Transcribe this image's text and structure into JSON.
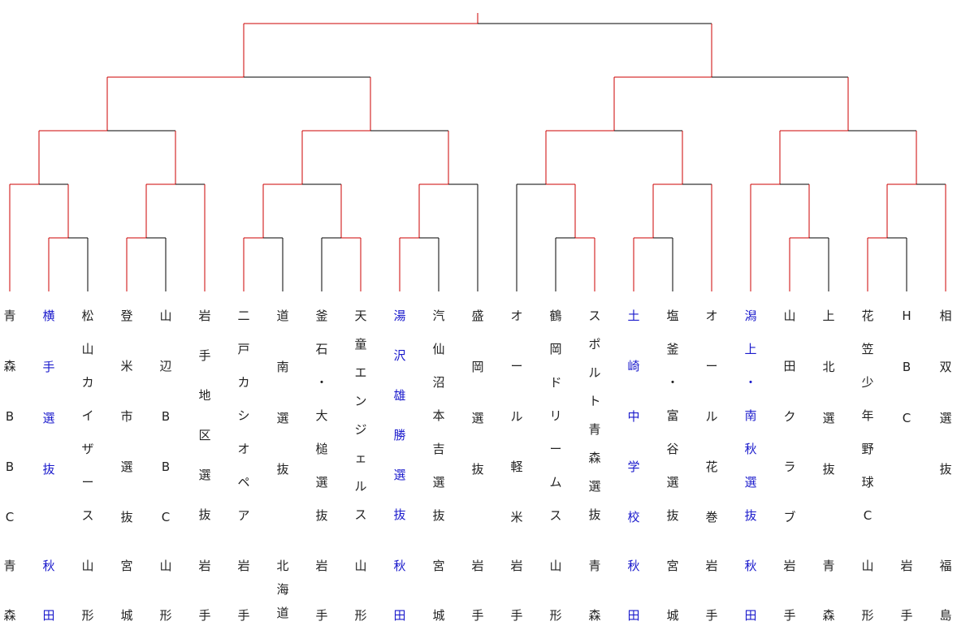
{
  "colors": {
    "winning_path": "#cc0000",
    "normal_line": "#000000",
    "winner_text": "#1a1acc",
    "text": "#222222"
  },
  "teams": [
    {
      "name": "青森BBC",
      "pref": "青森",
      "highlight": false
    },
    {
      "name": "横手選抜",
      "pref": "秋田",
      "highlight": true
    },
    {
      "name": "松山カイザース",
      "pref": "山形",
      "highlight": false
    },
    {
      "name": "登米市選抜",
      "pref": "宮城",
      "highlight": false
    },
    {
      "name": "山辺BBC",
      "pref": "山形",
      "highlight": false
    },
    {
      "name": "岩手地区選抜",
      "pref": "岩手",
      "highlight": false
    },
    {
      "name": "二戸カシオペア",
      "pref": "岩手",
      "highlight": false
    },
    {
      "name": "道南選抜",
      "pref": "北海道",
      "highlight": false
    },
    {
      "name": "釜石・大槌選抜",
      "pref": "岩手",
      "highlight": false
    },
    {
      "name": "天童エンジェルス",
      "pref": "山形",
      "highlight": false
    },
    {
      "name": "湯沢雄勝選抜",
      "pref": "秋田",
      "highlight": true
    },
    {
      "name": "汽仙沼本吉選抜",
      "pref": "宮城",
      "highlight": false
    },
    {
      "name": "盛岡選抜",
      "pref": "岩手",
      "highlight": false
    },
    {
      "name": "オール軽米",
      "pref": "岩手",
      "highlight": false
    },
    {
      "name": "鶴岡ドリームス",
      "pref": "山形",
      "highlight": false
    },
    {
      "name": "スポルト青森選抜",
      "pref": "青森",
      "highlight": false
    },
    {
      "name": "土崎中学校",
      "pref": "秋田",
      "highlight": true
    },
    {
      "name": "塩釜・富谷選抜",
      "pref": "宮城",
      "highlight": false
    },
    {
      "name": "オール花巻",
      "pref": "岩手",
      "highlight": false
    },
    {
      "name": "潟上・南秋選抜",
      "pref": "秋田",
      "highlight": true
    },
    {
      "name": "山田クラブ",
      "pref": "岩手",
      "highlight": false
    },
    {
      "name": "上北選抜",
      "pref": "青森",
      "highlight": false
    },
    {
      "name": "花笠少年野球C",
      "pref": "山形",
      "highlight": false
    },
    {
      "name": "HBC",
      "pref": "岩手",
      "highlight": false
    },
    {
      "name": "相双選抜",
      "pref": "福島",
      "highlight": false
    }
  ]
}
